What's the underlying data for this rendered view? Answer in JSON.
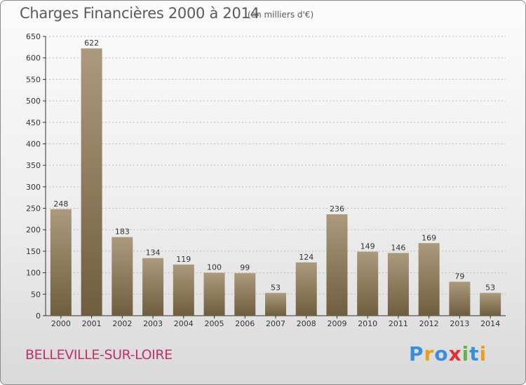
{
  "title": "Charges Financières 2000 à 2014",
  "subtitle": "(en milliers d'€)",
  "place": "BELLEVILLE-SUR-LOIRE",
  "brand": {
    "text": "Proxiti",
    "letters": [
      "P",
      "r",
      "o",
      "x",
      "i",
      "t",
      "i"
    ],
    "colors": [
      "#3a8fd8",
      "#e8a020",
      "#3a8fd8",
      "#e03030",
      "#6ab04c",
      "#3a8fd8",
      "#e8a020"
    ]
  },
  "colors": {
    "bar_top": "#ab9a7d",
    "bar_bottom": "#705d40",
    "axis": "#333333",
    "grid": "#bbbbbb"
  },
  "chart_data": {
    "type": "bar",
    "categories": [
      "2000",
      "2001",
      "2002",
      "2003",
      "2004",
      "2005",
      "2006",
      "2007",
      "2008",
      "2009",
      "2010",
      "2011",
      "2012",
      "2013",
      "2014"
    ],
    "values": [
      248,
      622,
      183,
      134,
      119,
      100,
      99,
      53,
      124,
      236,
      149,
      146,
      169,
      79,
      53
    ],
    "title": "Charges Financières 2000 à 2014",
    "subtitle": "(en milliers d'€)",
    "ylim": [
      0,
      650
    ],
    "yticks": [
      0,
      50,
      100,
      150,
      200,
      250,
      300,
      350,
      400,
      450,
      500,
      550,
      600,
      650
    ],
    "grid": true,
    "grid_style": "dashed-horizontal"
  }
}
